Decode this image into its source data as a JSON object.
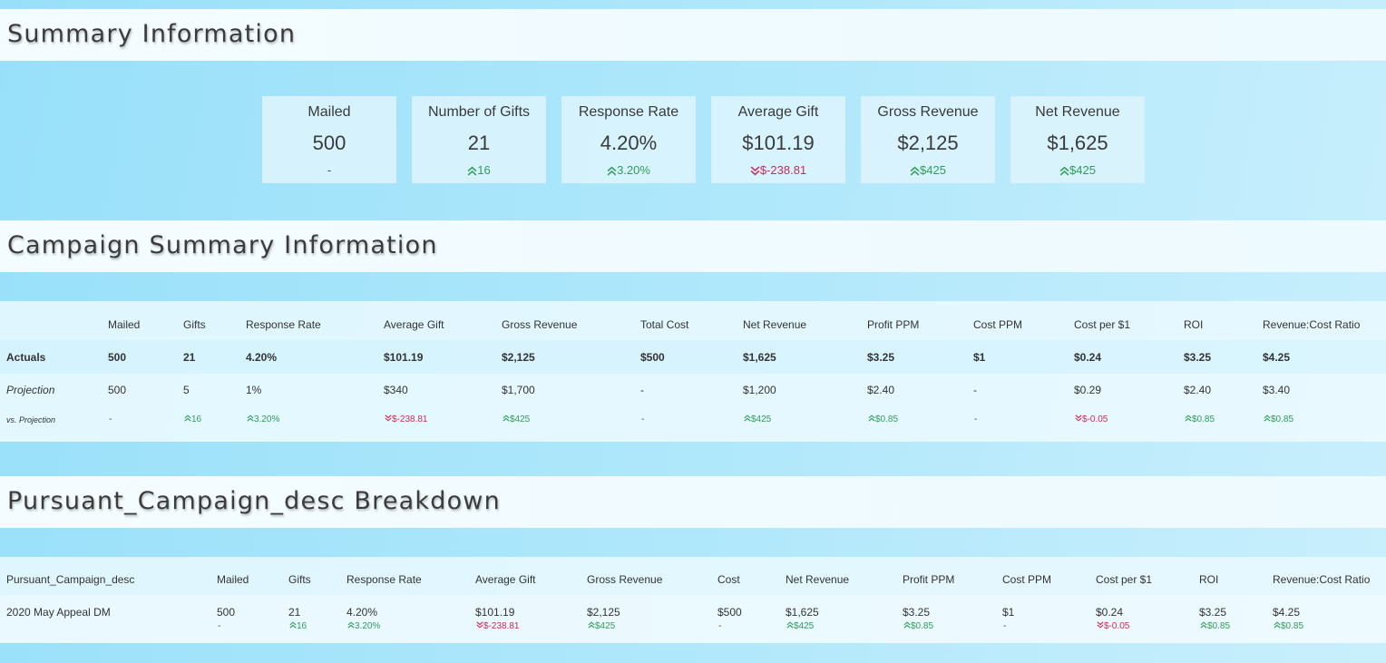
{
  "sections": {
    "summary_title": "Summary Information",
    "campaign_title": "Campaign Summary Information",
    "breakdown_title": "Pursuant_Campaign_desc Breakdown"
  },
  "kpis": [
    {
      "label": "Mailed",
      "value": "500",
      "delta": "-",
      "dir": "none"
    },
    {
      "label": "Number of Gifts",
      "value": "21",
      "delta": "16",
      "dir": "up"
    },
    {
      "label": "Response Rate",
      "value": "4.20%",
      "delta": "3.20%",
      "dir": "up"
    },
    {
      "label": "Average Gift",
      "value": "$101.19",
      "delta": "$-238.81",
      "dir": "down"
    },
    {
      "label": "Gross Revenue",
      "value": "$2,125",
      "delta": "$425",
      "dir": "up"
    },
    {
      "label": "Net Revenue",
      "value": "$1,625",
      "delta": "$425",
      "dir": "up"
    }
  ],
  "campaign": {
    "headers": [
      "Mailed",
      "Gifts",
      "Response Rate",
      "Average Gift",
      "Gross Revenue",
      "Total Cost",
      "Net Revenue",
      "Profit PPM",
      "Cost PPM",
      "Cost per $1",
      "ROI",
      "Revenue:Cost Ratio"
    ],
    "actuals_label": "Actuals",
    "actuals": [
      "500",
      "21",
      "4.20%",
      "$101.19",
      "$2,125",
      "$500",
      "$1,625",
      "$3.25",
      "$1",
      "$0.24",
      "$3.25",
      "$4.25"
    ],
    "projection_label": "Projection",
    "projection": [
      "500",
      "5",
      "1%",
      "$340",
      "$1,700",
      "-",
      "$1,200",
      "$2.40",
      "-",
      "$0.29",
      "$2.40",
      "$3.40"
    ],
    "vs_label": "vs. Projection",
    "vs": [
      {
        "text": "-",
        "dir": "none"
      },
      {
        "text": "16",
        "dir": "up"
      },
      {
        "text": "3.20%",
        "dir": "up"
      },
      {
        "text": "$-238.81",
        "dir": "down"
      },
      {
        "text": "$425",
        "dir": "up"
      },
      {
        "text": "-",
        "dir": "none"
      },
      {
        "text": "$425",
        "dir": "up"
      },
      {
        "text": "$0.85",
        "dir": "up"
      },
      {
        "text": "-",
        "dir": "none"
      },
      {
        "text": "$-0.05",
        "dir": "down"
      },
      {
        "text": "$0.85",
        "dir": "up"
      },
      {
        "text": "$0.85",
        "dir": "up"
      }
    ]
  },
  "breakdown": {
    "headers": [
      "Pursuant_Campaign_desc",
      "Mailed",
      "Gifts",
      "Response Rate",
      "Average Gift",
      "Gross Revenue",
      "Cost",
      "Net Revenue",
      "Profit PPM",
      "Cost PPM",
      "Cost per $1",
      "ROI",
      "Revenue:Cost Ratio"
    ],
    "row_label": "2020 May Appeal DM",
    "values": [
      "500",
      "21",
      "4.20%",
      "$101.19",
      "$2,125",
      "$500",
      "$1,625",
      "$3.25",
      "$1",
      "$0.24",
      "$3.25",
      "$4.25"
    ],
    "deltas": [
      {
        "text": "-",
        "dir": "none"
      },
      {
        "text": "16",
        "dir": "up"
      },
      {
        "text": "3.20%",
        "dir": "up"
      },
      {
        "text": "$-238.81",
        "dir": "down"
      },
      {
        "text": "$425",
        "dir": "up"
      },
      {
        "text": "-",
        "dir": "none"
      },
      {
        "text": "$425",
        "dir": "up"
      },
      {
        "text": "$0.85",
        "dir": "up"
      },
      {
        "text": "-",
        "dir": "none"
      },
      {
        "text": "$-0.05",
        "dir": "down"
      },
      {
        "text": "$0.85",
        "dir": "up"
      },
      {
        "text": "$0.85",
        "dir": "up"
      }
    ]
  },
  "colors": {
    "positive": "#2e9e56",
    "negative": "#cc2a55"
  }
}
